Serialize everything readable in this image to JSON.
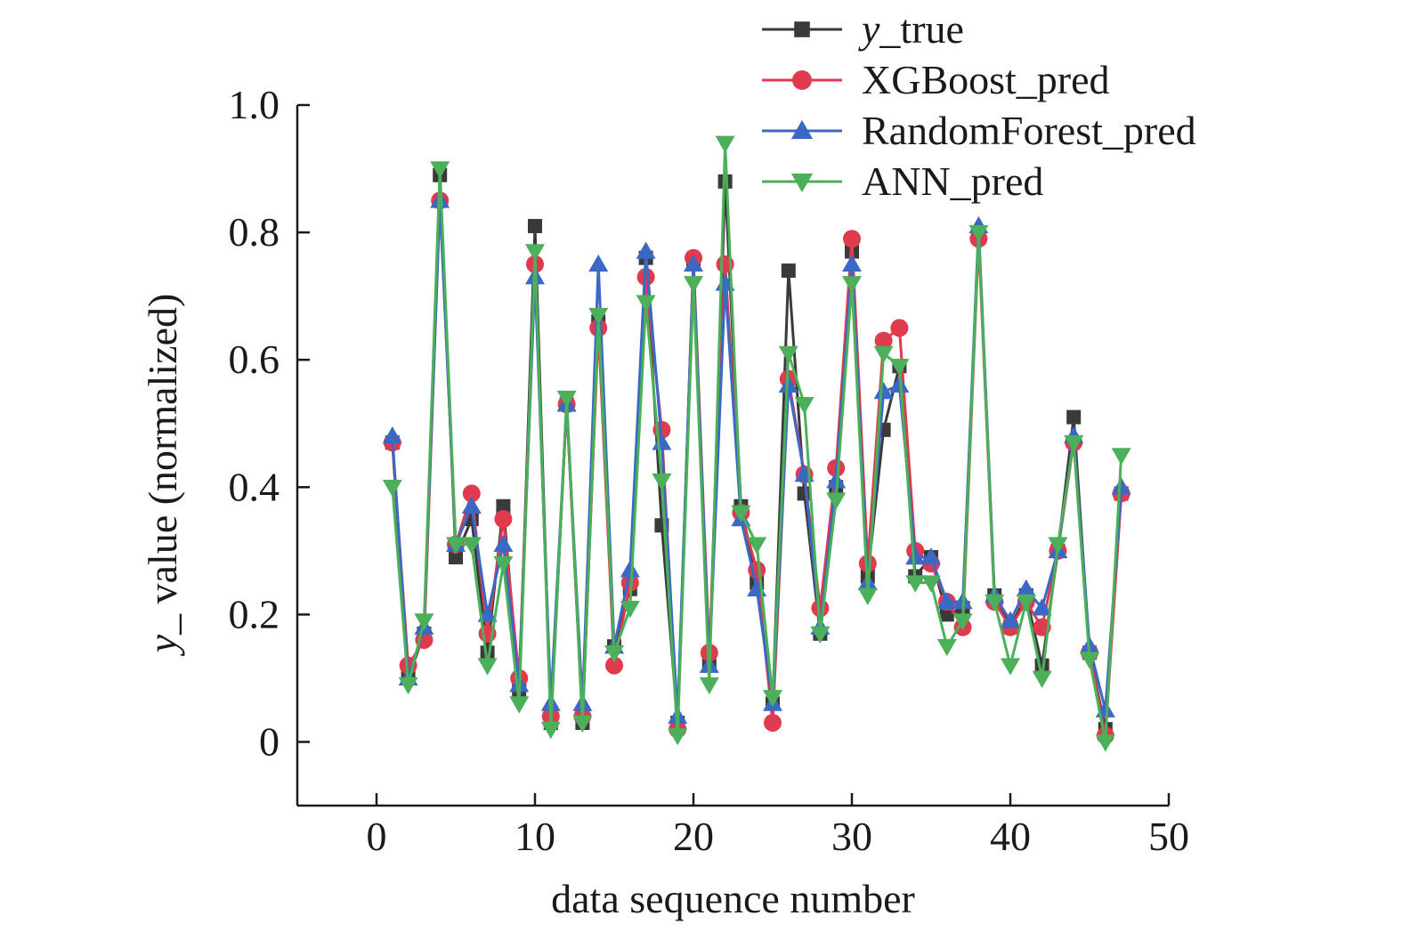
{
  "chart_data": {
    "type": "line",
    "xlabel": "data sequence number",
    "ylabel": "y_ value (normalized)",
    "xlim": [
      -5,
      50
    ],
    "ylim": [
      -0.1,
      1.0
    ],
    "xticks": [
      0,
      10,
      20,
      30,
      40,
      50
    ],
    "yticks": [
      0,
      0.2,
      0.4,
      0.6,
      0.8,
      1.0
    ],
    "xtick_labels": [
      "0",
      "10",
      "20",
      "30",
      "40",
      "50"
    ],
    "ytick_labels": [
      "0",
      "0.2",
      "0.4",
      "0.6",
      "0.8",
      "1.0"
    ],
    "grid": false,
    "legend_position": "top-right",
    "x": [
      1,
      2,
      3,
      4,
      5,
      6,
      7,
      8,
      9,
      10,
      11,
      12,
      13,
      14,
      15,
      16,
      17,
      18,
      19,
      20,
      21,
      22,
      23,
      24,
      25,
      26,
      27,
      28,
      29,
      30,
      31,
      32,
      33,
      34,
      35,
      36,
      37,
      38,
      39,
      40,
      41,
      42,
      43,
      44,
      45,
      46,
      47
    ],
    "series": [
      {
        "name": "y_true",
        "legend_italic_prefix": "y",
        "legend_rest": "_true",
        "color": "#3a3a3a",
        "marker": "square",
        "values": [
          0.47,
          0.1,
          0.17,
          0.89,
          0.29,
          0.35,
          0.14,
          0.37,
          0.08,
          0.81,
          0.03,
          0.53,
          0.03,
          0.66,
          0.15,
          0.24,
          0.76,
          0.34,
          0.03,
          0.75,
          0.12,
          0.88,
          0.37,
          0.25,
          0.06,
          0.74,
          0.39,
          0.17,
          0.4,
          0.77,
          0.26,
          0.49,
          0.59,
          0.26,
          0.29,
          0.2,
          0.21,
          0.8,
          0.23,
          0.18,
          0.23,
          0.12,
          0.3,
          0.51,
          0.14,
          0.02,
          0.39
        ]
      },
      {
        "name": "XGBoost_pred",
        "color": "#e03a4e",
        "marker": "circle",
        "values": [
          0.47,
          0.12,
          0.16,
          0.85,
          0.31,
          0.39,
          0.17,
          0.35,
          0.1,
          0.75,
          0.04,
          0.53,
          0.04,
          0.65,
          0.12,
          0.25,
          0.73,
          0.49,
          0.02,
          0.76,
          0.14,
          0.75,
          0.36,
          0.27,
          0.03,
          0.57,
          0.42,
          0.21,
          0.43,
          0.79,
          0.28,
          0.63,
          0.65,
          0.3,
          0.28,
          0.22,
          0.18,
          0.79,
          0.22,
          0.18,
          0.22,
          0.18,
          0.3,
          0.47,
          0.14,
          0.01,
          0.39
        ]
      },
      {
        "name": "RandomForest_pred",
        "color": "#3b68c4",
        "marker": "triangle-up",
        "values": [
          0.48,
          0.1,
          0.18,
          0.85,
          0.31,
          0.37,
          0.2,
          0.31,
          0.09,
          0.73,
          0.06,
          0.53,
          0.06,
          0.75,
          0.15,
          0.27,
          0.77,
          0.47,
          0.04,
          0.75,
          0.12,
          0.72,
          0.35,
          0.24,
          0.06,
          0.56,
          0.42,
          0.18,
          0.41,
          0.75,
          0.25,
          0.55,
          0.56,
          0.29,
          0.29,
          0.22,
          0.22,
          0.81,
          0.23,
          0.19,
          0.24,
          0.21,
          0.3,
          0.48,
          0.15,
          0.05,
          0.4
        ]
      },
      {
        "name": "ANN_pred",
        "color": "#4caf5a",
        "marker": "triangle-down",
        "values": [
          0.4,
          0.09,
          0.19,
          0.9,
          0.31,
          0.31,
          0.12,
          0.28,
          0.06,
          0.77,
          0.02,
          0.54,
          0.03,
          0.67,
          0.14,
          0.21,
          0.69,
          0.41,
          0.01,
          0.72,
          0.09,
          0.94,
          0.36,
          0.31,
          0.07,
          0.61,
          0.53,
          0.17,
          0.38,
          0.72,
          0.23,
          0.61,
          0.59,
          0.25,
          0.25,
          0.15,
          0.19,
          0.8,
          0.22,
          0.12,
          0.22,
          0.1,
          0.31,
          0.47,
          0.13,
          0.0,
          0.45
        ]
      }
    ]
  }
}
